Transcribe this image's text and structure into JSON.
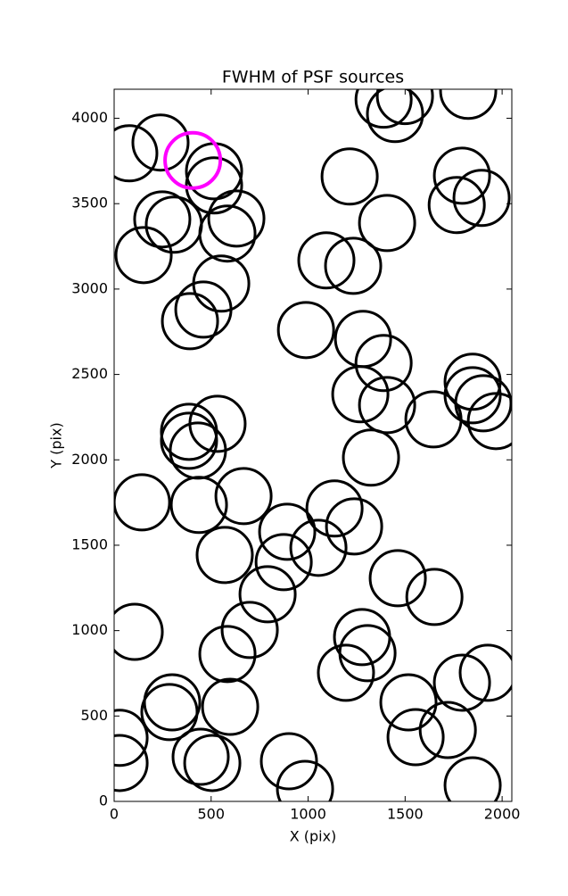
{
  "chart_data": {
    "type": "scatter",
    "title": "FWHM of PSF sources",
    "xlabel": "X (pix)",
    "ylabel": "Y (pix)",
    "xlim": [
      0,
      2050
    ],
    "ylim": [
      0,
      4170
    ],
    "xticks": [
      0,
      500,
      1000,
      1500,
      2000
    ],
    "yticks": [
      0,
      500,
      1000,
      1500,
      2000,
      2500,
      3000,
      3500,
      4000
    ],
    "series": [
      {
        "color": "#000000",
        "x": [
          78,
          239,
          515,
          515,
          248,
          308,
          630,
          584,
          152,
          552,
          460,
          391,
          989,
          1094,
          1232,
          1214,
          1407,
          1389,
          1448,
          1499,
          1825,
          1793,
          1766,
          1894,
          1283,
          1389,
          1269,
          1407,
          1646,
          1848,
          1848,
          1903,
          1968,
          1324,
          533,
          386,
          386,
          432,
          143,
          437,
          667,
          1136,
          1237,
          892,
          1053,
          874,
          570,
          791,
          1462,
          1651,
          106,
          699,
          1278,
          1306,
          584,
          1195,
          1926,
          1793,
          1517,
          1554,
          1720,
          299,
          285,
          598,
          28,
          28,
          446,
          506,
          901,
          984,
          1848
        ],
        "values": [
          3795,
          3858,
          3690,
          3607,
          3408,
          3377,
          3413,
          3325,
          3199,
          3032,
          2880,
          2812,
          2760,
          3168,
          3136,
          3659,
          3387,
          4109,
          4025,
          4130,
          4161,
          3664,
          3492,
          3534,
          2708,
          2567,
          2384,
          2321,
          2237,
          2457,
          2378,
          2331,
          2227,
          2013,
          2211,
          2164,
          2112,
          2054,
          1751,
          1736,
          1788,
          1715,
          1610,
          1579,
          1485,
          1401,
          1443,
          1213,
          1307,
          1197,
          993,
          1004,
          962,
          868,
          863,
          753,
          753,
          695,
          580,
          376,
          418,
          580,
          523,
          554,
          372,
          225,
          261,
          225,
          235,
          73,
          94
        ]
      },
      {
        "color": "#ff00ff",
        "x": [
          405
        ],
        "values": [
          3753
        ]
      }
    ]
  }
}
